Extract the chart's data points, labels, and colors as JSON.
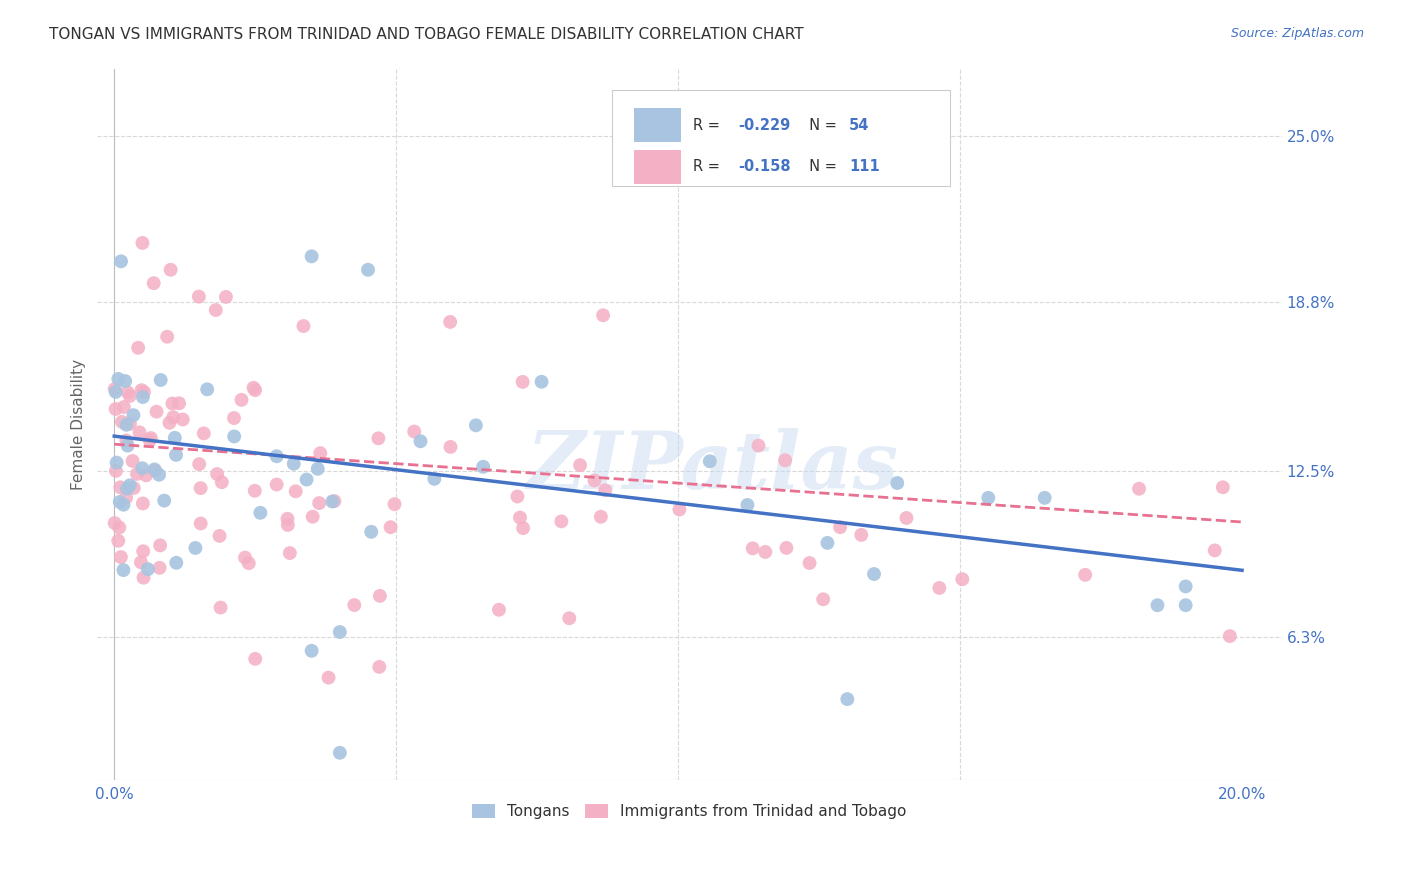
{
  "title": "TONGAN VS IMMIGRANTS FROM TRINIDAD AND TOBAGO FEMALE DISABILITY CORRELATION CHART",
  "source": "Source: ZipAtlas.com",
  "ylabel": "Female Disability",
  "right_yticks": [
    0.063,
    0.125,
    0.188,
    0.25
  ],
  "right_ylabels": [
    "6.3%",
    "12.5%",
    "18.8%",
    "25.0%"
  ],
  "xlim": [
    -0.003,
    0.207
  ],
  "ylim": [
    0.01,
    0.275
  ],
  "watermark": "ZIPatlas",
  "background_color": "#ffffff",
  "grid_color": "#d8d8d8",
  "title_color": "#333333",
  "axis_color": "#4472c4",
  "tongan_dot_color": "#a8c4e0",
  "trinidad_dot_color": "#f4b0c4",
  "blue_line_color": "#4472c4",
  "pink_line_color": "#e87090",
  "blue_line_start_y": 0.138,
  "blue_line_end_y": 0.088,
  "pink_line_start_y": 0.135,
  "pink_line_end_y": 0.106,
  "legend_R1": "-0.229",
  "legend_N1": "54",
  "legend_R2": "-0.158",
  "legend_N2": "111",
  "bottom_label1": "Tongans",
  "bottom_label2": "Immigrants from Trinidad and Tobago"
}
